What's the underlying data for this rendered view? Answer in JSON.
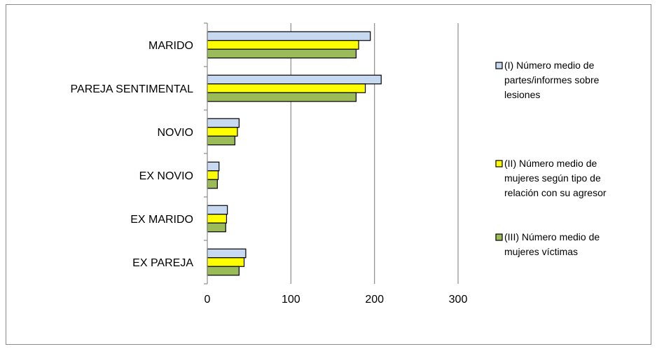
{
  "chart_data": {
    "type": "bar",
    "orientation": "horizontal",
    "categories": [
      "MARIDO",
      "PAREJA SENTIMENTAL",
      "NOVIO",
      "EX NOVIO",
      "EX MARIDO",
      "EX PAREJA"
    ],
    "series": [
      {
        "name": "(I) Número medio de partes/informes sobre lesiones",
        "name_lines": [
          "(I) Número medio de",
          "partes/informes sobre",
          "lesiones"
        ],
        "color": "#c6d9f1",
        "values": [
          195,
          208,
          38,
          14,
          24,
          46
        ]
      },
      {
        "name": "(II) Número medio de mujeres según tipo de relación con su agresor",
        "name_lines": [
          "(II) Número medio de",
          "mujeres según tipo de",
          "relación con su agresor"
        ],
        "color": "#ffff00",
        "values": [
          181,
          189,
          36,
          13,
          23,
          44
        ]
      },
      {
        "name": "(III) Número medio de mujeres víctimas",
        "name_lines": [
          "(III) Número medio de",
          "mujeres víctimas"
        ],
        "color": "#9bbb59",
        "values": [
          178,
          178,
          33,
          12,
          22,
          38
        ]
      }
    ],
    "xlim": [
      0,
      300
    ],
    "xticks": [
      "0",
      "100",
      "200",
      "300"
    ],
    "grid": "vertical",
    "legend": "right"
  }
}
